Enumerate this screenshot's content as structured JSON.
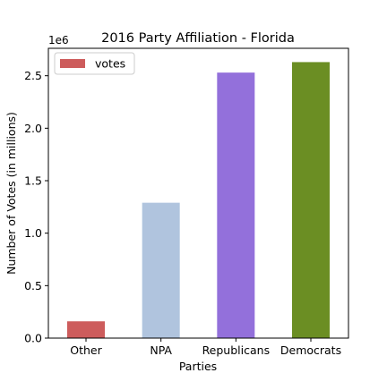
{
  "chart_data": {
    "type": "bar",
    "title": "2016 Party Affiliation - Florida",
    "xlabel": "Parties",
    "ylabel": "Number of Votes (in millions)",
    "offset_label": "1e6",
    "categories": [
      "Other",
      "NPA",
      "Republicans",
      "Democrats"
    ],
    "values": [
      160000,
      1290000,
      2530000,
      2630000
    ],
    "bar_colors": [
      "#cd5c5c",
      "#b0c4de",
      "#9370db",
      "#6b8e23"
    ],
    "ylim": [
      0,
      2761500
    ],
    "yticks": [
      0,
      500000,
      1000000,
      1500000,
      2000000,
      2500000
    ],
    "ytick_labels": [
      "0.0",
      "0.5",
      "1.0",
      "1.5",
      "2.0",
      "2.5"
    ],
    "legend": {
      "label": "votes",
      "color": "#cd5c5c",
      "placement": "top-left"
    },
    "grid": false
  }
}
